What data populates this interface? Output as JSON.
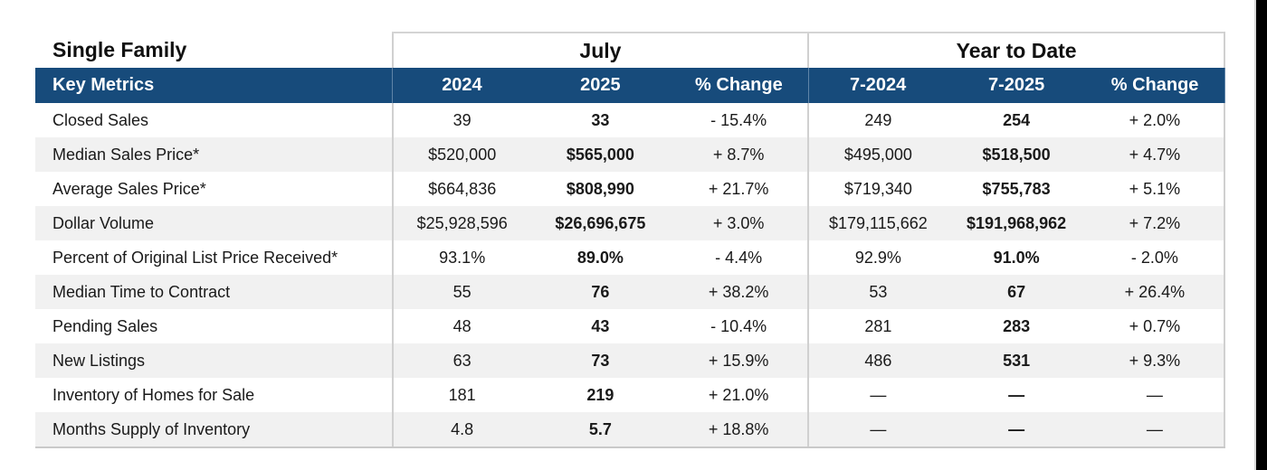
{
  "title": "Single Family",
  "groups": {
    "month": "July",
    "ytd": "Year to Date"
  },
  "columns": {
    "metric": "Key Metrics",
    "m_prev": "2024",
    "m_curr": "2025",
    "m_change": "% Change",
    "y_prev": "7-2024",
    "y_curr": "7-2025",
    "y_change": "% Change"
  },
  "rows": [
    {
      "metric": "Closed Sales",
      "m_prev": "39",
      "m_curr": "33",
      "m_change": "- 15.4%",
      "y_prev": "249",
      "y_curr": "254",
      "y_change": "+ 2.0%"
    },
    {
      "metric": "Median Sales Price*",
      "m_prev": "$520,000",
      "m_curr": "$565,000",
      "m_change": "+ 8.7%",
      "y_prev": "$495,000",
      "y_curr": "$518,500",
      "y_change": "+ 4.7%"
    },
    {
      "metric": "Average Sales Price*",
      "m_prev": "$664,836",
      "m_curr": "$808,990",
      "m_change": "+ 21.7%",
      "y_prev": "$719,340",
      "y_curr": "$755,783",
      "y_change": "+ 5.1%"
    },
    {
      "metric": "Dollar Volume",
      "m_prev": "$25,928,596",
      "m_curr": "$26,696,675",
      "m_change": "+ 3.0%",
      "y_prev": "$179,115,662",
      "y_curr": "$191,968,962",
      "y_change": "+ 7.2%"
    },
    {
      "metric": "Percent of Original List Price Received*",
      "m_prev": "93.1%",
      "m_curr": "89.0%",
      "m_change": "- 4.4%",
      "y_prev": "92.9%",
      "y_curr": "91.0%",
      "y_change": "- 2.0%"
    },
    {
      "metric": "Median Time to Contract",
      "m_prev": "55",
      "m_curr": "76",
      "m_change": "+ 38.2%",
      "y_prev": "53",
      "y_curr": "67",
      "y_change": "+ 26.4%"
    },
    {
      "metric": "Pending Sales",
      "m_prev": "48",
      "m_curr": "43",
      "m_change": "- 10.4%",
      "y_prev": "281",
      "y_curr": "283",
      "y_change": "+ 0.7%"
    },
    {
      "metric": "New Listings",
      "m_prev": "63",
      "m_curr": "73",
      "m_change": "+ 15.9%",
      "y_prev": "486",
      "y_curr": "531",
      "y_change": "+ 9.3%"
    },
    {
      "metric": "Inventory of Homes for Sale",
      "m_prev": "181",
      "m_curr": "219",
      "m_change": "+ 21.0%",
      "y_prev": "—",
      "y_curr": "—",
      "y_change": "—"
    },
    {
      "metric": "Months Supply of Inventory",
      "m_prev": "4.8",
      "m_curr": "5.7",
      "m_change": "+ 18.8%",
      "y_prev": "—",
      "y_curr": "—",
      "y_change": "—"
    }
  ],
  "colors": {
    "header_bg": "#174b7b",
    "header_text": "#ffffff",
    "stripe": "#f1f1f1",
    "rule": "#d0d0d0"
  }
}
